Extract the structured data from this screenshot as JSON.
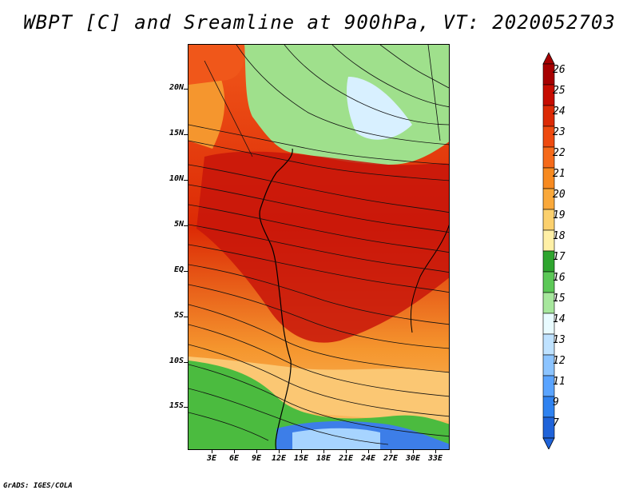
{
  "title": "WBPT [C] and Sreamline at 900hPa, VT: 2020052703",
  "credit": "GrADS: IGES/COLA",
  "map": {
    "latitude_labels": [
      "20N",
      "15N",
      "10N",
      "5N",
      "EQ",
      "5S",
      "10S",
      "15S"
    ],
    "longitude_labels": [
      "3E",
      "6E",
      "9E",
      "12E",
      "15E",
      "18E",
      "21E",
      "24E",
      "27E",
      "30E",
      "33E"
    ],
    "palette": {
      "deep_red": "#b40000",
      "red": "#dc2a05",
      "orange_red": "#f0571a",
      "orange": "#f5962e",
      "light_orange": "#fbc773",
      "yellow": "#fff1a8",
      "green": "#4bbb3f",
      "light_green": "#9fe08c",
      "pale_blue": "#d8f0ff",
      "blue": "#3d7ee8"
    }
  },
  "colorbar": {
    "labels": [
      "26",
      "25",
      "24",
      "23",
      "22",
      "21",
      "20",
      "19",
      "18",
      "17",
      "16",
      "15",
      "14",
      "13",
      "12",
      "11",
      "9",
      "7"
    ],
    "colors": [
      "#a60000",
      "#c60c00",
      "#dc2a05",
      "#ee4a0f",
      "#f56a1a",
      "#f78a20",
      "#f9a83a",
      "#fbd06d",
      "#fff0a6",
      "#2fa52f",
      "#5cc857",
      "#a7e79d",
      "#e9fbff",
      "#bfe2ff",
      "#8cc4ff",
      "#5aa4ff",
      "#2f82f0",
      "#1f63d9"
    ]
  }
}
